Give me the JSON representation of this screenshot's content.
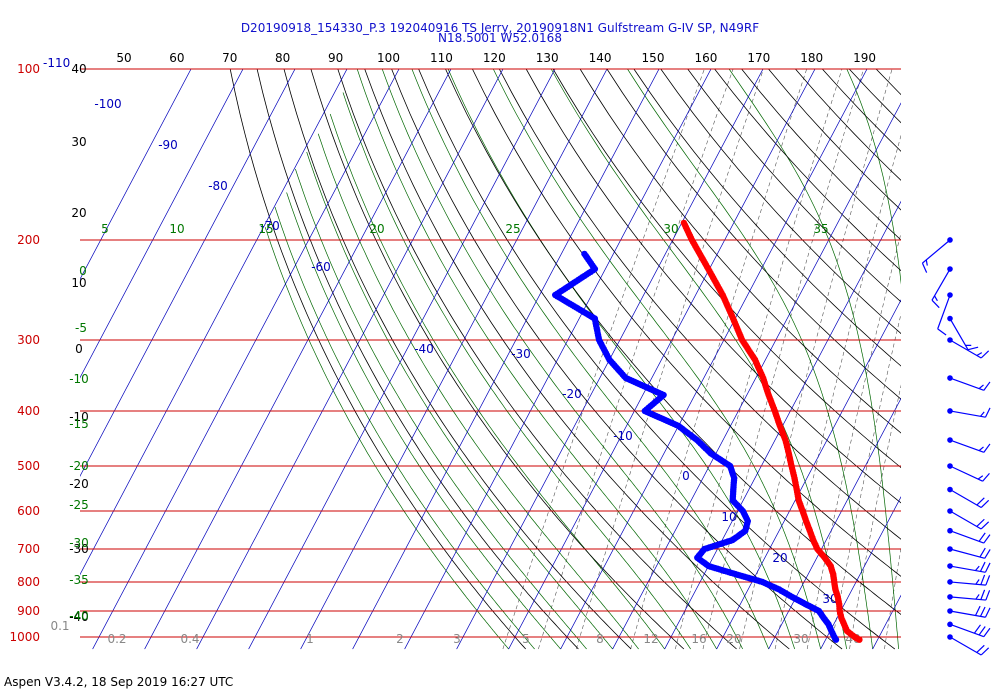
{
  "header": {
    "title_line1": "D20190918_154330_P.3 192040916 TS Jerry, 20190918N1 Gulfstream G-IV SP, N49RF",
    "title_line2": "N18.5001 W52.0168"
  },
  "footer": {
    "text": "Aspen V3.4.2, 18 Sep 2019  16:27 UTC"
  },
  "colors": {
    "isobar": "#cc0000",
    "isotherm": "#0000bb",
    "dry_adiabat": "#000000",
    "moist_adiabat": "#006600",
    "mixing_ratio": "#555555",
    "temperature_trace": "#ff0000",
    "dewpoint_trace": "#0000ff",
    "wind_barb": "#0000ff"
  },
  "chart_data": {
    "type": "skew-t",
    "title": "D20190918_154330_P.3 192040916 TS Jerry, 20190918N1 Gulfstream G-IV SP, N49RF",
    "y_axis": {
      "scale": "log",
      "ylim": [
        100,
        1000
      ],
      "ticks": [
        "100",
        "200",
        "300",
        "400",
        "500",
        "600",
        "700",
        "800",
        "900",
        "1000"
      ],
      "top_label_extra": "-110"
    },
    "top_axis": {
      "ticks": [
        "50",
        "60",
        "70",
        "80",
        "90",
        "100",
        "110",
        "120",
        "130",
        "140",
        "150",
        "160",
        "170",
        "180",
        "190"
      ]
    },
    "isotherm_labels": [
      "-100",
      "-90",
      "-80",
      "-70",
      "-60",
      "-40",
      "-30",
      "-20",
      "-10",
      "0",
      "10",
      "20",
      "30"
    ],
    "height_labels": [
      "40",
      "30",
      "20",
      "10",
      "0",
      "-10",
      "-20",
      "-30",
      "-40"
    ],
    "theta_e_labels": [
      "5",
      "10",
      "15",
      "20",
      "25",
      "30",
      "35"
    ],
    "moist_left_labels": [
      "0",
      "-5",
      "-10",
      "-15",
      "-20",
      "-25",
      "-30",
      "-35",
      "-40"
    ],
    "mixing_ratio_labels": [
      "0.1",
      "0.2",
      "0.4",
      "1",
      "2",
      "3",
      "5",
      "8",
      "12",
      "16",
      "20",
      "30",
      "40"
    ],
    "temperature": [
      {
        "p": 1011,
        "t": 26.5
      },
      {
        "p": 1000,
        "t": 25.3
      },
      {
        "p": 975,
        "t": 23.2
      },
      {
        "p": 950,
        "t": 22.0
      },
      {
        "p": 925,
        "t": 20.8
      },
      {
        "p": 900,
        "t": 19.8
      },
      {
        "p": 875,
        "t": 19.0
      },
      {
        "p": 850,
        "t": 18.0
      },
      {
        "p": 825,
        "t": 16.8
      },
      {
        "p": 800,
        "t": 15.8
      },
      {
        "p": 775,
        "t": 14.8
      },
      {
        "p": 750,
        "t": 13.5
      },
      {
        "p": 725,
        "t": 11.5
      },
      {
        "p": 700,
        "t": 9.2
      },
      {
        "p": 675,
        "t": 7.5
      },
      {
        "p": 650,
        "t": 5.9
      },
      {
        "p": 625,
        "t": 4.2
      },
      {
        "p": 600,
        "t": 2.5
      },
      {
        "p": 575,
        "t": 0.7
      },
      {
        "p": 550,
        "t": -0.8
      },
      {
        "p": 525,
        "t": -2.4
      },
      {
        "p": 500,
        "t": -4.2
      },
      {
        "p": 475,
        "t": -6.0
      },
      {
        "p": 450,
        "t": -8.0
      },
      {
        "p": 425,
        "t": -10.5
      },
      {
        "p": 400,
        "t": -13.0
      },
      {
        "p": 375,
        "t": -15.8
      },
      {
        "p": 350,
        "t": -18.6
      },
      {
        "p": 325,
        "t": -22.0
      },
      {
        "p": 300,
        "t": -26.5
      },
      {
        "p": 275,
        "t": -30.4
      },
      {
        "p": 250,
        "t": -34.8
      },
      {
        "p": 225,
        "t": -40.2
      },
      {
        "p": 200,
        "t": -46.3
      },
      {
        "p": 185,
        "t": -50.0
      }
    ],
    "dewpoint": [
      {
        "p": 1011,
        "t": 22.0
      },
      {
        "p": 1000,
        "t": 21.4
      },
      {
        "p": 975,
        "t": 20.2
      },
      {
        "p": 950,
        "t": 19.0
      },
      {
        "p": 925,
        "t": 17.4
      },
      {
        "p": 900,
        "t": 15.8
      },
      {
        "p": 875,
        "t": 12.5
      },
      {
        "p": 850,
        "t": 9.2
      },
      {
        "p": 825,
        "t": 6.0
      },
      {
        "p": 800,
        "t": 2.0
      },
      {
        "p": 775,
        "t": -4.0
      },
      {
        "p": 750,
        "t": -10.0
      },
      {
        "p": 725,
        "t": -13.0
      },
      {
        "p": 700,
        "t": -12.5
      },
      {
        "p": 675,
        "t": -8.0
      },
      {
        "p": 650,
        "t": -6.5
      },
      {
        "p": 625,
        "t": -7.0
      },
      {
        "p": 600,
        "t": -9.0
      },
      {
        "p": 575,
        "t": -12.0
      },
      {
        "p": 550,
        "t": -13.0
      },
      {
        "p": 525,
        "t": -14.0
      },
      {
        "p": 500,
        "t": -16.0
      },
      {
        "p": 475,
        "t": -21.0
      },
      {
        "p": 450,
        "t": -25.0
      },
      {
        "p": 425,
        "t": -30.0
      },
      {
        "p": 400,
        "t": -38.0
      },
      {
        "p": 375,
        "t": -36.0
      },
      {
        "p": 350,
        "t": -45.0
      },
      {
        "p": 325,
        "t": -50.0
      },
      {
        "p": 300,
        "t": -54.0
      },
      {
        "p": 275,
        "t": -57.0
      },
      {
        "p": 250,
        "t": -67.0
      },
      {
        "p": 225,
        "t": -62.0
      },
      {
        "p": 210,
        "t": -66.0
      }
    ],
    "winds": [
      {
        "p": 1000,
        "dir": 120,
        "spd": 20
      },
      {
        "p": 950,
        "dir": 110,
        "spd": 30
      },
      {
        "p": 900,
        "dir": 100,
        "spd": 30
      },
      {
        "p": 850,
        "dir": 95,
        "spd": 25
      },
      {
        "p": 800,
        "dir": 95,
        "spd": 25
      },
      {
        "p": 750,
        "dir": 100,
        "spd": 25
      },
      {
        "p": 700,
        "dir": 105,
        "spd": 20
      },
      {
        "p": 650,
        "dir": 110,
        "spd": 20
      },
      {
        "p": 600,
        "dir": 120,
        "spd": 20
      },
      {
        "p": 550,
        "dir": 120,
        "spd": 20
      },
      {
        "p": 500,
        "dir": 115,
        "spd": 15
      },
      {
        "p": 450,
        "dir": 110,
        "spd": 15
      },
      {
        "p": 400,
        "dir": 100,
        "spd": 15
      },
      {
        "p": 350,
        "dir": 110,
        "spd": 15
      },
      {
        "p": 300,
        "dir": 120,
        "spd": 15
      },
      {
        "p": 275,
        "dir": 150,
        "spd": 15
      },
      {
        "p": 250,
        "dir": 200,
        "spd": 10
      },
      {
        "p": 225,
        "dir": 210,
        "spd": 15
      },
      {
        "p": 200,
        "dir": 230,
        "spd": 15
      }
    ]
  }
}
